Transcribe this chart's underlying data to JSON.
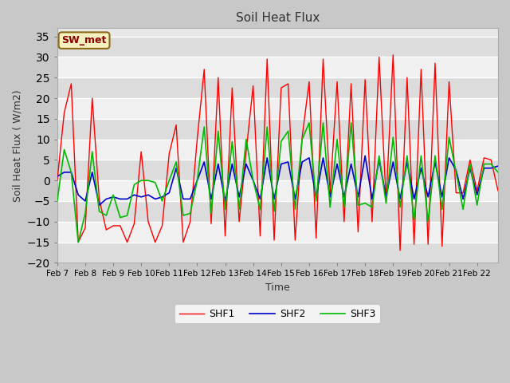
{
  "title": "Soil Heat Flux",
  "xlabel": "Time",
  "ylabel": "Soil Heat Flux ( W/m2)",
  "ylim": [
    -20,
    37
  ],
  "yticks": [
    -20,
    -15,
    -10,
    -5,
    0,
    5,
    10,
    15,
    20,
    25,
    30,
    35
  ],
  "annotation": "SW_met",
  "annotation_color": "#8B0000",
  "annotation_bg": "#F5F0C0",
  "colors": {
    "SHF1": "#FF0000",
    "SHF2": "#0000CD",
    "SHF3": "#00BB00"
  },
  "x_labels": [
    "Feb 7",
    "Feb 8",
    "Feb 9",
    "Feb 10",
    "Feb 11",
    "Feb 12",
    "Feb 13",
    "Feb 14",
    "Feb 15",
    "Feb 16",
    "Feb 17",
    "Feb 18",
    "Feb 19",
    "Feb 20",
    "Feb 21",
    "Feb 22"
  ],
  "n_points_per_day": 4,
  "SHF1": [
    0.0,
    16.5,
    23.5,
    -15.0,
    -11.5,
    20.0,
    -4.5,
    -12.0,
    -11.0,
    -11.0,
    -15.0,
    -10.5,
    7.0,
    -10.0,
    -15.0,
    -11.0,
    6.5,
    13.5,
    -15.0,
    -10.0,
    10.0,
    27.0,
    -10.5,
    25.0,
    -13.5,
    22.5,
    -10.0,
    7.0,
    23.0,
    -13.5,
    29.5,
    -14.5,
    22.5,
    23.5,
    -14.5,
    10.5,
    24.0,
    -14.0,
    29.5,
    -3.0,
    24.0,
    -10.0,
    23.5,
    -12.5,
    24.5,
    -10.0,
    30.0,
    -5.0,
    30.5,
    -17.0,
    25.0,
    -15.5,
    27.0,
    -15.5,
    28.5,
    -16.0,
    24.0,
    -3.0,
    -3.0,
    5.0,
    -2.5,
    5.5,
    5.0,
    -2.5
  ],
  "SHF2": [
    1.0,
    2.0,
    2.0,
    -3.5,
    -5.0,
    2.0,
    -6.0,
    -4.5,
    -4.0,
    -4.5,
    -4.5,
    -3.5,
    -4.0,
    -3.5,
    -4.5,
    -4.0,
    -3.0,
    3.0,
    -4.5,
    -4.5,
    0.0,
    4.5,
    -4.5,
    4.0,
    -5.0,
    4.0,
    -4.0,
    4.0,
    0.0,
    -4.5,
    5.5,
    -4.5,
    4.0,
    4.5,
    -4.5,
    4.5,
    5.5,
    -4.0,
    5.5,
    -4.0,
    4.0,
    -4.0,
    4.0,
    -4.0,
    6.0,
    -4.5,
    5.0,
    -4.0,
    4.5,
    -4.5,
    4.5,
    -4.5,
    3.0,
    -4.0,
    4.5,
    -4.0,
    5.5,
    2.5,
    -4.5,
    3.0,
    -3.5,
    3.0,
    3.0,
    3.5
  ],
  "SHF3": [
    -5.0,
    7.5,
    2.0,
    -15.0,
    -8.0,
    7.0,
    -7.5,
    -8.5,
    -3.5,
    -9.0,
    -8.5,
    -1.0,
    0.0,
    0.0,
    -0.5,
    -5.0,
    0.0,
    4.5,
    -8.5,
    -8.0,
    0.0,
    13.0,
    -8.0,
    12.0,
    -7.0,
    9.5,
    -7.0,
    10.0,
    0.0,
    -7.0,
    13.0,
    -7.5,
    9.5,
    12.0,
    -7.0,
    10.0,
    14.0,
    -5.0,
    14.0,
    -6.5,
    10.0,
    -6.5,
    14.0,
    -6.0,
    -5.5,
    -6.5,
    6.0,
    -5.5,
    10.5,
    -6.5,
    6.0,
    -9.5,
    6.0,
    -10.0,
    6.0,
    -7.0,
    10.5,
    2.0,
    -7.0,
    4.0,
    -6.0,
    4.0,
    4.0,
    2.0
  ]
}
